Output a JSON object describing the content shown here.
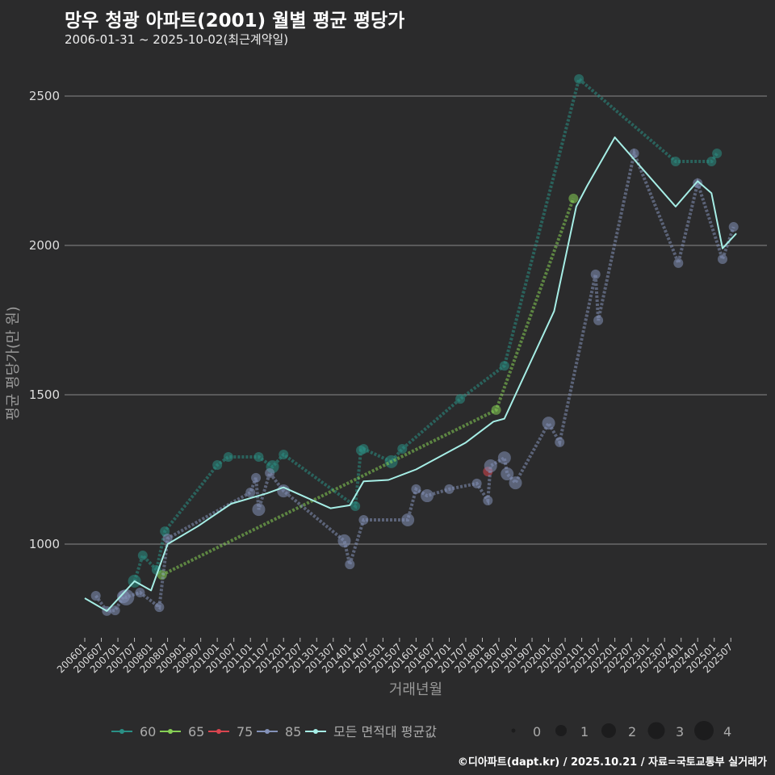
{
  "chart_data": {
    "type": "scatter",
    "title": "망우 청광 아파트(2001) 월별 평균 평당가",
    "subtitle": "2006-01-31 ~ 2025-10-02(최근계약일)",
    "xlabel": "거래년월",
    "ylabel": "평균 평당가(만 원)",
    "ylim": [
      700,
      2650
    ],
    "yticks": [
      1000,
      1500,
      2000,
      2500
    ],
    "xticks": [
      "200601",
      "200607",
      "200701",
      "200707",
      "200801",
      "200807",
      "200901",
      "200907",
      "201001",
      "201007",
      "201101",
      "201107",
      "201201",
      "201207",
      "201301",
      "201307",
      "201401",
      "201407",
      "201501",
      "201507",
      "201601",
      "201607",
      "201701",
      "201707",
      "201801",
      "201807",
      "201901",
      "201907",
      "202001",
      "202007",
      "202101",
      "202107",
      "202201",
      "202207",
      "202301",
      "202307",
      "202401",
      "202407",
      "202501",
      "202507"
    ],
    "grid": true,
    "series": [
      {
        "name": "60",
        "color": "#2a8f85",
        "points": [
          [
            "2007-07",
            876,
            2
          ],
          [
            "2007-10",
            962,
            1
          ],
          [
            "2008-03",
            914,
            1
          ],
          [
            "2008-06",
            1043,
            1
          ],
          [
            "2010-01",
            1265,
            1
          ],
          [
            "2010-05",
            1292,
            1
          ],
          [
            "2011-04",
            1292,
            1
          ],
          [
            "2011-09",
            1259,
            2
          ],
          [
            "2012-01",
            1300,
            1
          ],
          [
            "2014-03",
            1127,
            1
          ],
          [
            "2014-05",
            1314,
            1
          ],
          [
            "2014-06",
            1319,
            1
          ],
          [
            "2015-04",
            1276,
            2
          ],
          [
            "2015-08",
            1319,
            1
          ],
          [
            "2017-05",
            1486,
            1
          ],
          [
            "2018-09",
            1597,
            1
          ],
          [
            "2020-12",
            2557,
            1
          ],
          [
            "2023-11",
            2281,
            1
          ],
          [
            "2024-12",
            2281,
            1
          ],
          [
            "2025-02",
            2308,
            1
          ]
        ]
      },
      {
        "name": "65",
        "color": "#86cf55",
        "points": [
          [
            "2008-05",
            897,
            1
          ],
          [
            "2018-06",
            1449,
            1
          ],
          [
            "2020-10",
            2157,
            1
          ]
        ]
      },
      {
        "name": "75",
        "color": "#d9454f",
        "points": [
          [
            "2018-03",
            1243,
            1
          ]
        ]
      },
      {
        "name": "85",
        "color": "#8391b8",
        "points": [
          [
            "2006-05",
            827,
            1
          ],
          [
            "2006-09",
            776,
            1
          ],
          [
            "2006-12",
            778,
            1
          ],
          [
            "2007-03",
            824,
            2
          ],
          [
            "2007-04",
            822,
            3
          ],
          [
            "2007-09",
            838,
            1
          ],
          [
            "2008-04",
            789,
            1
          ],
          [
            "2008-07",
            1019,
            1
          ],
          [
            "2011-01",
            1173,
            1
          ],
          [
            "2011-03",
            1222,
            1
          ],
          [
            "2011-04",
            1116,
            2
          ],
          [
            "2011-08",
            1238,
            1
          ],
          [
            "2012-01",
            1178,
            2
          ],
          [
            "2013-11",
            1011,
            2
          ],
          [
            "2014-01",
            932,
            1
          ],
          [
            "2014-06",
            1081,
            1
          ],
          [
            "2015-10",
            1081,
            2
          ],
          [
            "2016-01",
            1184,
            1
          ],
          [
            "2016-05",
            1162,
            2
          ],
          [
            "2017-01",
            1184,
            1
          ],
          [
            "2017-11",
            1203,
            1
          ],
          [
            "2018-03",
            1146,
            1
          ],
          [
            "2018-04",
            1262,
            2
          ],
          [
            "2018-09",
            1289,
            2
          ],
          [
            "2018-10",
            1235,
            2
          ],
          [
            "2019-01",
            1205,
            2
          ],
          [
            "2020-01",
            1405,
            2
          ],
          [
            "2020-05",
            1341,
            1
          ],
          [
            "2021-06",
            1903,
            1
          ],
          [
            "2021-07",
            1749,
            1
          ],
          [
            "2022-08",
            2308,
            1
          ],
          [
            "2023-12",
            1941,
            1
          ],
          [
            "2024-07",
            2208,
            1
          ],
          [
            "2025-04",
            1954,
            1
          ],
          [
            "2025-08",
            2062,
            1
          ]
        ]
      }
    ],
    "average": {
      "name": "모든 면적대 평균값",
      "color": "#a6eee6",
      "points": [
        [
          "2006-01",
          819
        ],
        [
          "2006-09",
          776
        ],
        [
          "2007-07",
          876
        ],
        [
          "2008-01",
          845
        ],
        [
          "2008-07",
          1000
        ],
        [
          "2009-06",
          1060
        ],
        [
          "2010-06",
          1135
        ],
        [
          "2011-07",
          1170
        ],
        [
          "2012-01",
          1190
        ],
        [
          "2013-06",
          1120
        ],
        [
          "2014-01",
          1130
        ],
        [
          "2014-06",
          1210
        ],
        [
          "2015-03",
          1215
        ],
        [
          "2016-01",
          1250
        ],
        [
          "2017-07",
          1340
        ],
        [
          "2018-05",
          1410
        ],
        [
          "2018-09",
          1420
        ],
        [
          "2019-06",
          1600
        ],
        [
          "2020-03",
          1780
        ],
        [
          "2020-11",
          2130
        ],
        [
          "2021-03",
          2200
        ],
        [
          "2022-01",
          2362
        ],
        [
          "2023-11",
          2130
        ],
        [
          "2024-07",
          2215
        ],
        [
          "2024-12",
          2175
        ],
        [
          "2025-04",
          1990
        ],
        [
          "2025-09",
          2040
        ]
      ]
    },
    "size_legend": [
      "0",
      "1",
      "2",
      "3",
      "4"
    ],
    "legend_position": "bottom"
  },
  "caption": "©디아파트(dapt.kr) / 2025.10.21 / 자료=국토교통부 실거래가"
}
